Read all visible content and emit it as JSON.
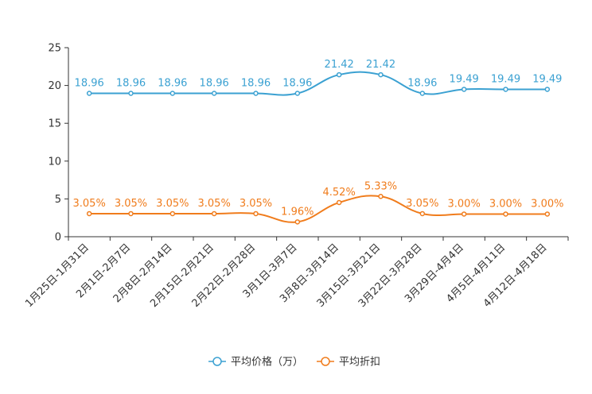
{
  "chart_data": {
    "type": "line",
    "title": "",
    "xlabel": "",
    "ylabel": "",
    "ylim": [
      0,
      25
    ],
    "yticks": [
      0,
      5,
      10,
      15,
      20,
      25
    ],
    "grid": false,
    "legend_position": "bottom-center",
    "categories": [
      "1月25日-1月31日",
      "2月1日-2月7日",
      "2月8日-2月14日",
      "2月15日-2月21日",
      "2月22日-2月28日",
      "3月1日-3月7日",
      "3月8日-3月14日",
      "3月15日-3月21日",
      "3月22日-3月28日",
      "3月29日-4月4日",
      "4月5日-4月11日",
      "4月12日-4月18日"
    ],
    "series": [
      {
        "name": "平均价格（万）",
        "color": "#3ba1d2",
        "values": [
          18.96,
          18.96,
          18.96,
          18.96,
          18.96,
          18.96,
          21.42,
          21.42,
          18.96,
          19.49,
          19.49,
          19.49
        ],
        "labels": [
          "18.96",
          "18.96",
          "18.96",
          "18.96",
          "18.96",
          "18.96",
          "21.42",
          "21.42",
          "18.96",
          "19.49",
          "19.49",
          "19.49"
        ]
      },
      {
        "name": "平均折扣",
        "color": "#f07c1c",
        "values": [
          3.05,
          3.05,
          3.05,
          3.05,
          3.05,
          1.96,
          4.52,
          5.33,
          3.05,
          3.0,
          3.0,
          3.0
        ],
        "labels": [
          "3.05%",
          "3.05%",
          "3.05%",
          "3.05%",
          "3.05%",
          "1.96%",
          "4.52%",
          "5.33%",
          "3.05%",
          "3.00%",
          "3.00%",
          "3.00%"
        ]
      }
    ]
  }
}
